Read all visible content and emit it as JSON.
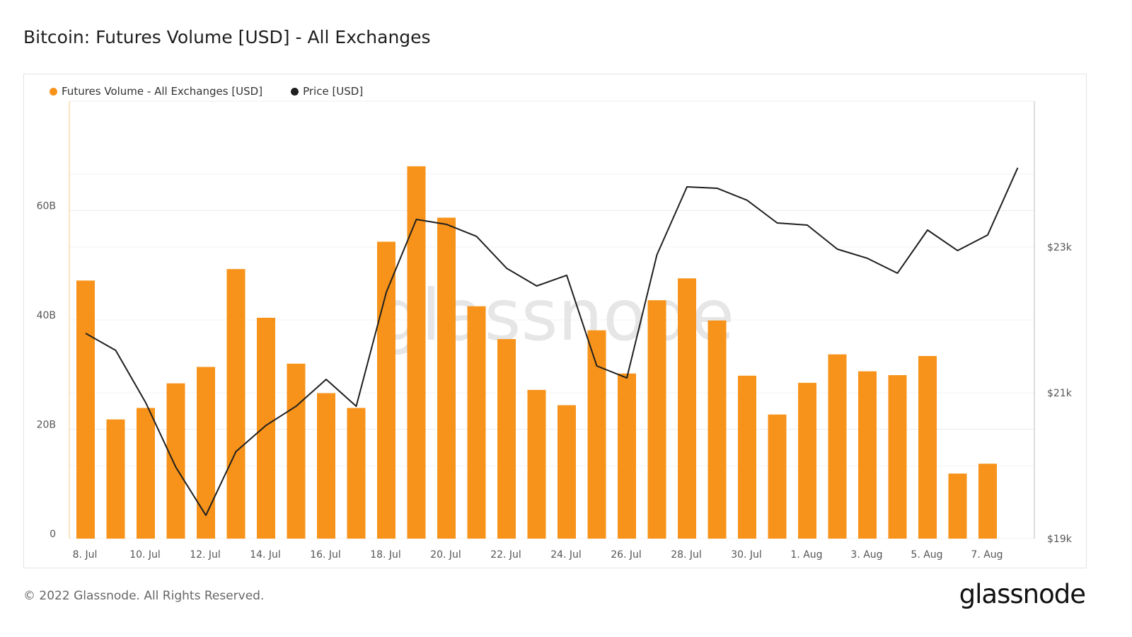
{
  "title": "Bitcoin: Futures Volume [USD] - All Exchanges",
  "footer": "© 2022 Glassnode. All Rights Reserved.",
  "logo": "glassnode",
  "watermark": "glassnode",
  "colors": {
    "bar": "#f7931a",
    "line": "#1f1f1f"
  },
  "chart_data": {
    "type": "bar+line",
    "title": "Bitcoin: Futures Volume [USD] - All Exchanges",
    "legend": [
      "Futures Volume - All Exchanges [USD]",
      "Price [USD]"
    ],
    "legend_position": "top-left",
    "x": [
      "8 Jul",
      "9 Jul",
      "10 Jul",
      "11 Jul",
      "12 Jul",
      "13 Jul",
      "14 Jul",
      "15 Jul",
      "16 Jul",
      "17 Jul",
      "18 Jul",
      "19 Jul",
      "20 Jul",
      "21 Jul",
      "22 Jul",
      "23 Jul",
      "24 Jul",
      "25 Jul",
      "26 Jul",
      "27 Jul",
      "28 Jul",
      "29 Jul",
      "30 Jul",
      "31 Jul",
      "1 Aug",
      "2 Aug",
      "3 Aug",
      "4 Aug",
      "5 Aug",
      "6 Aug",
      "7 Aug",
      "8 Aug"
    ],
    "x_tick_labels": [
      "8. Jul",
      "10. Jul",
      "12. Jul",
      "14. Jul",
      "16. Jul",
      "18. Jul",
      "20. Jul",
      "22. Jul",
      "24. Jul",
      "26. Jul",
      "28. Jul",
      "30. Jul",
      "1. Aug",
      "3. Aug",
      "5. Aug",
      "7. Aug"
    ],
    "series": [
      {
        "name": "Futures Volume - All Exchanges [USD]",
        "type": "bar",
        "axis": "left",
        "unit": "B",
        "values": [
          47.2,
          21.8,
          23.9,
          28.4,
          31.4,
          49.3,
          40.4,
          32.0,
          26.6,
          23.9,
          54.3,
          68.1,
          58.7,
          42.5,
          36.5,
          27.2,
          24.4,
          38.1,
          30.2,
          43.6,
          47.6,
          39.9,
          29.8,
          22.7,
          28.5,
          33.7,
          30.6,
          29.9,
          33.4,
          11.9,
          13.7,
          null
        ]
      },
      {
        "name": "Price [USD]",
        "type": "line",
        "axis": "right",
        "values": [
          21816,
          21583,
          20864,
          19980,
          19320,
          20194,
          20553,
          20816,
          21184,
          20816,
          22379,
          23379,
          23311,
          23146,
          22709,
          22466,
          22612,
          21369,
          21204,
          22893,
          23825,
          23806,
          23641,
          23330,
          23301,
          22971,
          22845,
          22641,
          23233,
          22951,
          23165,
          24087
        ]
      }
    ],
    "y_left": {
      "ylim": [
        0,
        80
      ],
      "ticks": [
        0,
        20,
        40,
        60
      ],
      "tick_labels": [
        "0",
        "20B",
        "40B",
        "60B"
      ]
    },
    "y_right": {
      "ylim": [
        19000,
        25000
      ],
      "ticks": [
        19000,
        21000,
        23000
      ],
      "tick_labels": [
        "$19k",
        "$21k",
        "$23k"
      ]
    },
    "grid": true
  }
}
